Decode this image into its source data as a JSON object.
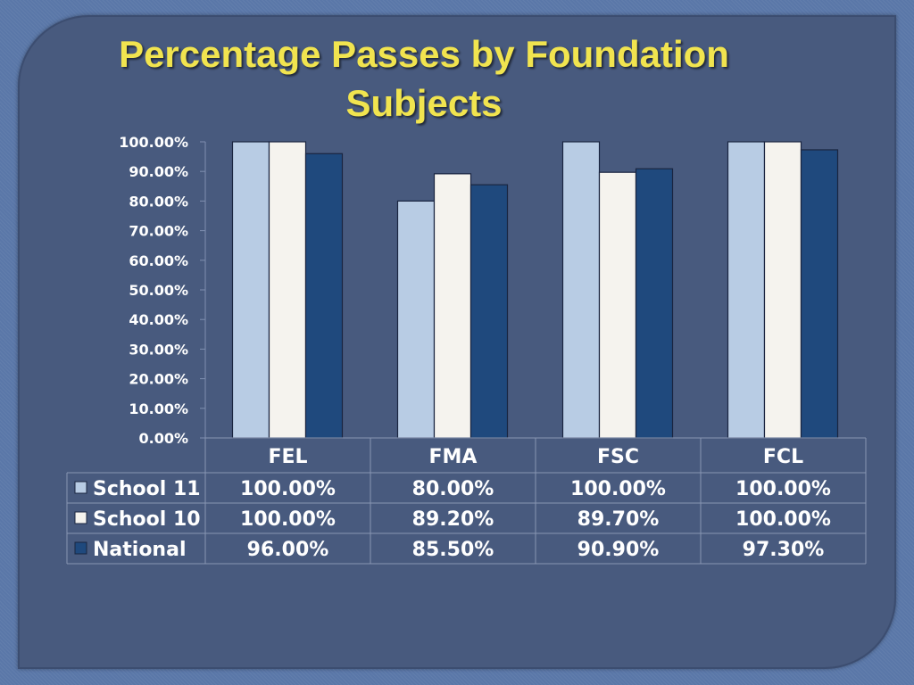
{
  "slide": {
    "title_line1": "Percentage Passes by Foundation",
    "title_line2": "Subjects"
  },
  "chart_data": {
    "type": "bar",
    "title": "Percentage Passes by Foundation Subjects",
    "categories": [
      "FEL",
      "FMA",
      "FSC",
      "FCL"
    ],
    "series": [
      {
        "name": "School 11",
        "values": [
          100.0,
          80.0,
          100.0,
          100.0
        ],
        "labels": [
          "100.00%",
          "80.00%",
          "100.00%",
          "100.00%"
        ],
        "color": "#b8cce4"
      },
      {
        "name": "School 10",
        "values": [
          100.0,
          89.2,
          89.7,
          100.0
        ],
        "labels": [
          "100.00%",
          "89.20%",
          "89.70%",
          "100.00%"
        ],
        "color": "#f5f3ee"
      },
      {
        "name": "National",
        "values": [
          96.0,
          85.5,
          90.9,
          97.3
        ],
        "labels": [
          "96.00%",
          "85.50%",
          "90.90%",
          "97.30%"
        ],
        "color": "#1f497d"
      }
    ],
    "y_ticks": [
      "0.00%",
      "10.00%",
      "20.00%",
      "30.00%",
      "40.00%",
      "50.00%",
      "60.00%",
      "70.00%",
      "80.00%",
      "90.00%",
      "100.00%"
    ],
    "ylim": [
      0,
      100
    ],
    "data_table": true,
    "legend": "in data table",
    "grid": false
  }
}
